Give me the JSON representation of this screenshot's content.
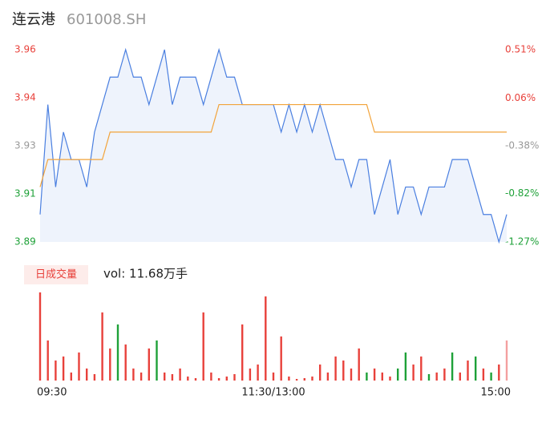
{
  "chart_data": [
    {
      "type": "line",
      "title": "连云港",
      "subtitle": "601008.SH",
      "x": [
        0,
        4,
        8,
        12,
        16,
        20,
        24,
        28,
        32,
        36,
        40,
        44,
        48,
        52,
        56,
        60,
        64,
        68,
        72,
        76,
        80,
        84,
        88,
        92,
        96,
        100,
        104,
        108,
        112,
        116,
        120,
        124,
        128,
        132,
        136,
        140,
        144,
        148,
        152,
        156,
        160,
        164,
        168,
        172,
        176,
        180,
        184,
        188,
        192,
        196,
        200,
        204,
        208,
        212,
        216,
        220,
        224,
        228,
        232,
        236,
        240
      ],
      "series": [
        {
          "color": "#4a7fe0",
          "area": true,
          "values": [
            3.9,
            3.94,
            3.91,
            3.93,
            3.92,
            3.92,
            3.91,
            3.93,
            3.94,
            3.95,
            3.95,
            3.96,
            3.95,
            3.95,
            3.94,
            3.95,
            3.96,
            3.94,
            3.95,
            3.95,
            3.95,
            3.94,
            3.95,
            3.96,
            3.95,
            3.95,
            3.94,
            3.94,
            3.94,
            3.94,
            3.94,
            3.93,
            3.94,
            3.93,
            3.94,
            3.93,
            3.94,
            3.93,
            3.92,
            3.92,
            3.91,
            3.92,
            3.92,
            3.9,
            3.91,
            3.92,
            3.9,
            3.91,
            3.91,
            3.9,
            3.91,
            3.91,
            3.91,
            3.92,
            3.92,
            3.92,
            3.91,
            3.9,
            3.9,
            3.89,
            3.9
          ]
        },
        {
          "color": "#f2a33a",
          "values": [
            3.91,
            3.92,
            3.92,
            3.92,
            3.92,
            3.92,
            3.92,
            3.92,
            3.92,
            3.93,
            3.93,
            3.93,
            3.93,
            3.93,
            3.93,
            3.93,
            3.93,
            3.93,
            3.93,
            3.93,
            3.93,
            3.93,
            3.93,
            3.94,
            3.94,
            3.94,
            3.94,
            3.94,
            3.94,
            3.94,
            3.94,
            3.94,
            3.94,
            3.94,
            3.94,
            3.94,
            3.94,
            3.94,
            3.94,
            3.94,
            3.94,
            3.94,
            3.94,
            3.93,
            3.93,
            3.93,
            3.93,
            3.93,
            3.93,
            3.93,
            3.93,
            3.93,
            3.93,
            3.93,
            3.93,
            3.93,
            3.93,
            3.93,
            3.93,
            3.93,
            3.93
          ]
        }
      ],
      "xlim": [
        0,
        240
      ],
      "ylim": [
        3.89,
        3.96
      ],
      "yticks": [
        {
          "value": 3.96,
          "label": "3.96"
        },
        {
          "value": 3.9425,
          "label": "3.94"
        },
        {
          "value": 3.925,
          "label": "3.93"
        },
        {
          "value": 3.9075,
          "label": "3.91"
        },
        {
          "value": 3.89,
          "label": "3.89"
        }
      ],
      "ytick_colors": [
        "#e8413b",
        "#e8413b",
        "#999999",
        "#1ea138",
        "#1ea138"
      ],
      "y2lim": [
        -1.27,
        0.51
      ],
      "y2ticks": [
        {
          "value": 0.51,
          "label": "0.51%"
        },
        {
          "value": 0.06,
          "label": "0.06%"
        },
        {
          "value": -0.38,
          "label": "-0.38%"
        },
        {
          "value": -0.82,
          "label": "-0.82%"
        },
        {
          "value": -1.27,
          "label": "-1.27%"
        }
      ]
    },
    {
      "type": "bar",
      "title": "日成交量",
      "annotation": "vol: 11.68万手",
      "x": [
        0,
        4,
        8,
        12,
        16,
        20,
        24,
        28,
        32,
        36,
        40,
        44,
        48,
        52,
        56,
        60,
        64,
        68,
        72,
        76,
        80,
        84,
        88,
        92,
        96,
        100,
        104,
        108,
        112,
        116,
        120,
        124,
        128,
        132,
        136,
        140,
        144,
        148,
        152,
        156,
        160,
        164,
        168,
        172,
        176,
        180,
        184,
        188,
        192,
        196,
        200,
        204,
        208,
        212,
        216,
        220,
        224,
        228,
        232,
        236,
        240
      ],
      "values": [
        2200,
        1000,
        500,
        600,
        200,
        700,
        300,
        160,
        1700,
        800,
        1400,
        900,
        300,
        200,
        800,
        1000,
        200,
        160,
        300,
        100,
        60,
        1700,
        200,
        60,
        100,
        160,
        1400,
        300,
        400,
        2100,
        200,
        1100,
        100,
        40,
        60,
        100,
        400,
        200,
        600,
        500,
        300,
        800,
        200,
        300,
        200,
        100,
        300,
        700,
        400,
        600,
        160,
        200,
        300,
        700,
        200,
        500,
        600,
        300,
        200,
        400,
        1000
      ],
      "colors": [
        "#e8413b",
        "#e8413b",
        "#e8413b",
        "#e8413b",
        "#e8413b",
        "#e8413b",
        "#e8413b",
        "#e8413b",
        "#e8413b",
        "#e8413b",
        "#1ea138",
        "#e8413b",
        "#e8413b",
        "#e8413b",
        "#e8413b",
        "#1ea138",
        "#e8413b",
        "#e8413b",
        "#e8413b",
        "#e8413b",
        "#e8413b",
        "#e8413b",
        "#e8413b",
        "#e8413b",
        "#e8413b",
        "#e8413b",
        "#e8413b",
        "#e8413b",
        "#e8413b",
        "#e8413b",
        "#e8413b",
        "#e8413b",
        "#e8413b",
        "#e8413b",
        "#e8413b",
        "#e8413b",
        "#e8413b",
        "#e8413b",
        "#e8413b",
        "#e8413b",
        "#e8413b",
        "#e8413b",
        "#1ea138",
        "#e8413b",
        "#e8413b",
        "#e8413b",
        "#1ea138",
        "#1ea138",
        "#e8413b",
        "#e8413b",
        "#1ea138",
        "#e8413b",
        "#e8413b",
        "#1ea138",
        "#e8413b",
        "#e8413b",
        "#1ea138",
        "#e8413b",
        "#1ea138",
        "#e8413b",
        "#f4a0a0"
      ],
      "xlim": [
        0,
        240
      ],
      "ylim": [
        0,
        2200
      ],
      "xticks": [
        {
          "value": 0,
          "label": "09:30"
        },
        {
          "value": 120,
          "label": "11:30/13:00"
        },
        {
          "value": 240,
          "label": "15:00"
        }
      ]
    }
  ]
}
